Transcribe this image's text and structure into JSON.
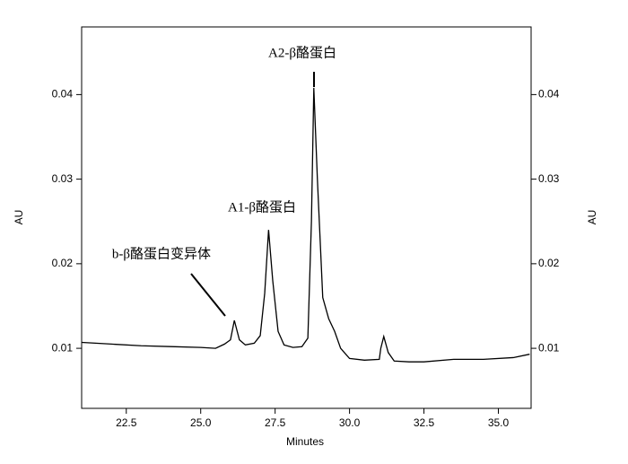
{
  "chart_data": {
    "type": "line",
    "xlabel": "Minutes",
    "ylabel": "AU",
    "y2label": "AU",
    "x": [
      21.0,
      22.0,
      23.0,
      24.0,
      25.0,
      25.5,
      25.8,
      26.0,
      26.13,
      26.3,
      26.5,
      26.8,
      27.0,
      27.15,
      27.28,
      27.42,
      27.6,
      27.8,
      28.1,
      28.4,
      28.6,
      28.72,
      28.8,
      28.92,
      29.1,
      29.3,
      29.5,
      29.7,
      30.0,
      30.5,
      31.0,
      31.05,
      31.15,
      31.3,
      31.5,
      32.0,
      32.5,
      33.5,
      34.5,
      35.5,
      36.05
    ],
    "values": [
      0.0107,
      0.0105,
      0.0103,
      0.0102,
      0.0101,
      0.01,
      0.0105,
      0.011,
      0.0133,
      0.011,
      0.0104,
      0.0106,
      0.0115,
      0.0165,
      0.024,
      0.018,
      0.012,
      0.0104,
      0.0101,
      0.0102,
      0.0112,
      0.025,
      0.0408,
      0.03,
      0.016,
      0.0135,
      0.012,
      0.01,
      0.0088,
      0.0086,
      0.0087,
      0.01,
      0.0114,
      0.0095,
      0.0085,
      0.0084,
      0.0084,
      0.0087,
      0.0087,
      0.0089,
      0.0093
    ],
    "color": "#000000",
    "xlim": [
      21.0,
      36.1
    ],
    "xticks": [
      22.5,
      {
        "value": 25,
        "label": "25.0"
      },
      27.5,
      {
        "value": 30,
        "label": "30.0"
      },
      32.5,
      {
        "value": 35,
        "label": "35.0"
      }
    ],
    "ylim": [
      0.0029,
      0.048
    ],
    "yticks": [
      0.01,
      0.02,
      0.03,
      0.04
    ],
    "y2lim": [
      0.0029,
      0.048
    ],
    "y2ticks": [
      0.01,
      0.02,
      0.03,
      0.04
    ],
    "annotations": [
      "b-β酪蛋白变异体",
      "A1-β酪蛋白",
      "A2-β酪蛋白"
    ]
  }
}
